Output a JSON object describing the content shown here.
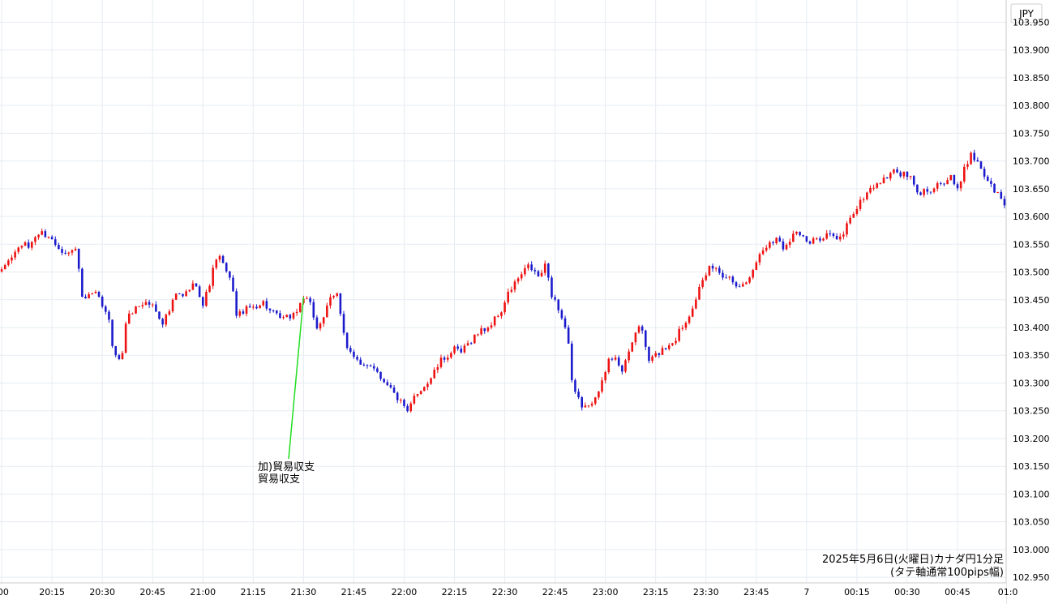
{
  "chart_data": {
    "type": "candlestick",
    "currency_label": "JPY",
    "caption_line1": "2025年5月6日(火曜日)カナダ円1分足",
    "caption_line2": "(タテ軸通常100pips幅)",
    "annotation_line1": "加)貿易収支",
    "annotation_line2": "貿易収支",
    "annotation_time": "21:30",
    "annotation_price": 103.455,
    "ylim": [
      102.94,
      103.99
    ],
    "y_ticks": [
      "102.950",
      "103.000",
      "103.050",
      "103.100",
      "103.150",
      "103.200",
      "103.250",
      "103.300",
      "103.350",
      "103.400",
      "103.450",
      "103.500",
      "103.550",
      "103.600",
      "103.650",
      "103.700",
      "103.750",
      "103.800",
      "103.850",
      "103.900",
      "103.950"
    ],
    "x_tick_labels": [
      ":00",
      "20:15",
      "20:30",
      "20:45",
      "21:00",
      "21:15",
      "21:30",
      "21:45",
      "22:00",
      "22:15",
      "22:30",
      "22:45",
      "23:00",
      "23:15",
      "23:30",
      "23:45",
      "7",
      "00:15",
      "00:30",
      "00:45",
      "01:0"
    ],
    "x_tick_minutes": [
      0,
      15,
      30,
      45,
      60,
      75,
      90,
      105,
      120,
      135,
      150,
      165,
      180,
      195,
      210,
      225,
      240,
      255,
      270,
      285,
      300
    ],
    "time_range_minutes": [
      -0.5,
      299.5
    ],
    "path_points": [
      [
        0,
        103.505
      ],
      [
        2,
        103.52
      ],
      [
        4,
        103.535
      ],
      [
        6,
        103.55
      ],
      [
        8,
        103.545
      ],
      [
        10,
        103.565
      ],
      [
        12,
        103.57
      ],
      [
        14,
        103.565
      ],
      [
        16,
        103.55
      ],
      [
        18,
        103.54
      ],
      [
        20,
        103.535
      ],
      [
        22,
        103.54
      ],
      [
        23,
        103.51
      ],
      [
        24,
        103.45
      ],
      [
        26,
        103.455
      ],
      [
        28,
        103.46
      ],
      [
        30,
        103.44
      ],
      [
        32,
        103.41
      ],
      [
        33,
        103.37
      ],
      [
        35,
        103.34
      ],
      [
        36,
        103.355
      ],
      [
        37,
        103.41
      ],
      [
        39,
        103.43
      ],
      [
        41,
        103.44
      ],
      [
        43,
        103.445
      ],
      [
        45,
        103.44
      ],
      [
        47,
        103.42
      ],
      [
        48,
        103.41
      ],
      [
        50,
        103.43
      ],
      [
        52,
        103.46
      ],
      [
        54,
        103.455
      ],
      [
        56,
        103.47
      ],
      [
        58,
        103.48
      ],
      [
        60,
        103.44
      ],
      [
        62,
        103.48
      ],
      [
        64,
        103.525
      ],
      [
        65,
        103.525
      ],
      [
        67,
        103.5
      ],
      [
        69,
        103.47
      ],
      [
        70,
        103.42
      ],
      [
        72,
        103.43
      ],
      [
        74,
        103.435
      ],
      [
        76,
        103.44
      ],
      [
        78,
        103.445
      ],
      [
        80,
        103.43
      ],
      [
        82,
        103.42
      ],
      [
        84,
        103.415
      ],
      [
        86,
        103.42
      ],
      [
        88,
        103.43
      ],
      [
        90,
        103.455
      ],
      [
        92,
        103.44
      ],
      [
        94,
        103.4
      ],
      [
        96,
        103.42
      ],
      [
        98,
        103.45
      ],
      [
        100,
        103.46
      ],
      [
        102,
        103.395
      ],
      [
        103,
        103.365
      ],
      [
        105,
        103.345
      ],
      [
        107,
        103.33
      ],
      [
        109,
        103.335
      ],
      [
        111,
        103.33
      ],
      [
        113,
        103.31
      ],
      [
        115,
        103.3
      ],
      [
        117,
        103.28
      ],
      [
        119,
        103.265
      ],
      [
        121,
        103.245
      ],
      [
        123,
        103.275
      ],
      [
        125,
        103.29
      ],
      [
        127,
        103.3
      ],
      [
        129,
        103.32
      ],
      [
        131,
        103.34
      ],
      [
        133,
        103.35
      ],
      [
        135,
        103.36
      ],
      [
        137,
        103.355
      ],
      [
        139,
        103.37
      ],
      [
        141,
        103.385
      ],
      [
        143,
        103.395
      ],
      [
        145,
        103.4
      ],
      [
        147,
        103.415
      ],
      [
        149,
        103.43
      ],
      [
        151,
        103.46
      ],
      [
        153,
        103.48
      ],
      [
        155,
        103.495
      ],
      [
        157,
        103.51
      ],
      [
        159,
        103.5
      ],
      [
        160,
        103.49
      ],
      [
        162,
        103.51
      ],
      [
        163,
        103.49
      ],
      [
        164,
        103.46
      ],
      [
        166,
        103.435
      ],
      [
        168,
        103.4
      ],
      [
        169,
        103.37
      ],
      [
        170,
        103.3
      ],
      [
        171,
        103.28
      ],
      [
        173,
        103.26
      ],
      [
        175,
        103.255
      ],
      [
        177,
        103.28
      ],
      [
        179,
        103.3
      ],
      [
        181,
        103.34
      ],
      [
        183,
        103.35
      ],
      [
        185,
        103.32
      ],
      [
        186,
        103.335
      ],
      [
        188,
        103.375
      ],
      [
        190,
        103.405
      ],
      [
        191,
        103.39
      ],
      [
        193,
        103.34
      ],
      [
        195,
        103.35
      ],
      [
        197,
        103.36
      ],
      [
        199,
        103.37
      ],
      [
        201,
        103.38
      ],
      [
        202,
        103.395
      ],
      [
        204,
        103.41
      ],
      [
        206,
        103.44
      ],
      [
        208,
        103.47
      ],
      [
        210,
        103.49
      ],
      [
        211,
        103.51
      ],
      [
        213,
        103.505
      ],
      [
        215,
        103.495
      ],
      [
        217,
        103.49
      ],
      [
        219,
        103.48
      ],
      [
        221,
        103.475
      ],
      [
        223,
        103.49
      ],
      [
        225,
        103.52
      ],
      [
        227,
        103.54
      ],
      [
        229,
        103.555
      ],
      [
        231,
        103.56
      ],
      [
        233,
        103.545
      ],
      [
        235,
        103.56
      ],
      [
        237,
        103.575
      ],
      [
        239,
        103.56
      ],
      [
        241,
        103.55
      ],
      [
        243,
        103.56
      ],
      [
        245,
        103.565
      ],
      [
        247,
        103.57
      ],
      [
        249,
        103.555
      ],
      [
        251,
        103.57
      ],
      [
        253,
        103.6
      ],
      [
        255,
        103.615
      ],
      [
        257,
        103.635
      ],
      [
        259,
        103.65
      ],
      [
        261,
        103.66
      ],
      [
        263,
        103.665
      ],
      [
        265,
        103.68
      ],
      [
        267,
        103.68
      ],
      [
        269,
        103.675
      ],
      [
        271,
        103.67
      ],
      [
        273,
        103.64
      ],
      [
        275,
        103.645
      ],
      [
        277,
        103.65
      ],
      [
        279,
        103.66
      ],
      [
        281,
        103.66
      ],
      [
        283,
        103.67
      ],
      [
        285,
        103.645
      ],
      [
        287,
        103.69
      ],
      [
        289,
        103.71
      ],
      [
        291,
        103.7
      ],
      [
        293,
        103.675
      ],
      [
        295,
        103.655
      ],
      [
        297,
        103.64
      ],
      [
        299,
        103.62
      ]
    ]
  }
}
